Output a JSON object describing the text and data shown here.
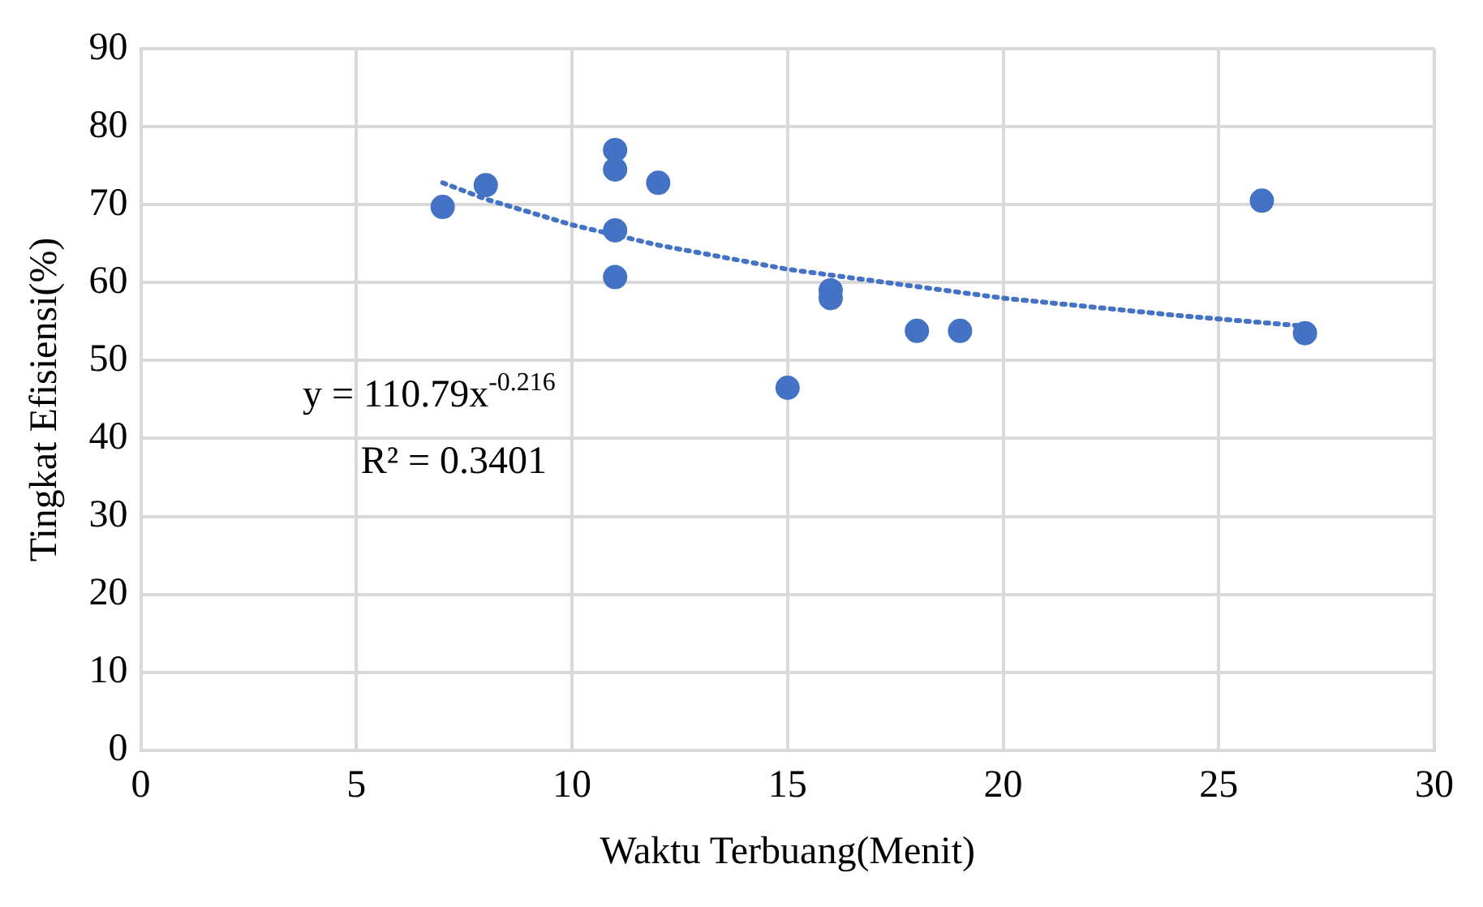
{
  "chart_data": {
    "type": "scatter",
    "xlabel": "Waktu Terbuang(Menit)",
    "ylabel": "Tingkat Efisiensi(%)",
    "xlim": [
      0,
      30
    ],
    "xticks": [
      0,
      5,
      10,
      15,
      20,
      25,
      30
    ],
    "ylim": [
      0,
      90
    ],
    "yticks": [
      0,
      10,
      20,
      30,
      40,
      50,
      60,
      70,
      80,
      90
    ],
    "grid": true,
    "legend": false,
    "marker": "circle",
    "series": [
      {
        "color": "#4472c4",
        "x": [
          7,
          8,
          11,
          11,
          11,
          11,
          12,
          15,
          16,
          16,
          18,
          19,
          26,
          27
        ],
        "values": [
          69.7,
          72.5,
          77,
          74.5,
          66.7,
          60.7,
          72.8,
          46.5,
          59,
          58,
          53.8,
          53.8,
          70.5,
          53.5
        ]
      },
      {
        "type": "line",
        "color": "#4472c4",
        "line_style": "dotted",
        "marker": "none",
        "x": [
          7,
          8,
          10,
          12,
          15,
          20,
          24,
          27
        ],
        "values": [
          72.8,
          70.7,
          67.4,
          64.8,
          61.7,
          58.0,
          55.8,
          54.4
        ]
      }
    ],
    "annotations": [
      "y = 110.79x$^{-0.216}$",
      "R² = 0.3401"
    ]
  }
}
